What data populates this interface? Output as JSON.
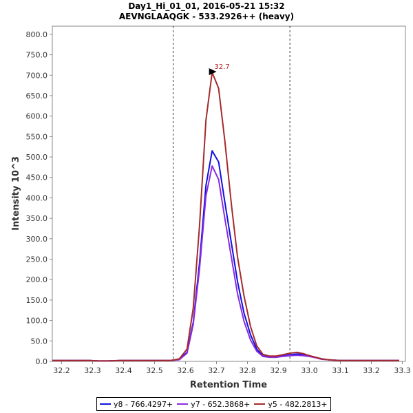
{
  "chart_data": {
    "type": "line",
    "title": "Day1_Hi_01_01, 2016-05-21 15:32",
    "subtitle": "AEVNGLAAQGK - 533.2926++ (heavy)",
    "xlabel": "Retention Time",
    "ylabel": "Intensity 10^3",
    "xlim": [
      32.17,
      33.31
    ],
    "ylim": [
      0,
      820
    ],
    "xticks": [
      "32.2",
      "32.3",
      "32.4",
      "32.5",
      "32.6",
      "32.7",
      "32.8",
      "32.9",
      "33.0",
      "33.1",
      "33.2",
      "33.3"
    ],
    "xtick_values": [
      32.2,
      32.3,
      32.4,
      32.5,
      32.6,
      32.7,
      32.8,
      32.9,
      33.0,
      33.1,
      33.2,
      33.3
    ],
    "yticks": [
      "0.0",
      "50.0",
      "100.0",
      "150.0",
      "200.0",
      "250.0",
      "300.0",
      "350.0",
      "400.0",
      "450.0",
      "500.0",
      "550.0",
      "600.0",
      "650.0",
      "700.0",
      "750.0",
      "800.0"
    ],
    "ytick_values": [
      0,
      50,
      100,
      150,
      200,
      250,
      300,
      350,
      400,
      450,
      500,
      550,
      600,
      650,
      700,
      750,
      800
    ],
    "grid": false,
    "integration_bounds": [
      32.56,
      32.937
    ],
    "peak_annotation": {
      "label": "32.7",
      "x": 32.707,
      "y": 707,
      "color": "#b02020"
    },
    "x": [
      32.17,
      32.21,
      32.25,
      32.29,
      32.32,
      32.35,
      32.39,
      32.43,
      32.47,
      32.51,
      32.55,
      32.58,
      32.605,
      32.625,
      32.645,
      32.666,
      32.686,
      32.707,
      32.727,
      32.748,
      32.768,
      32.789,
      32.81,
      32.83,
      32.85,
      32.871,
      32.892,
      32.912,
      32.937,
      32.96,
      32.98,
      33.0,
      33.02,
      33.04,
      33.06,
      33.08,
      33.1,
      33.13,
      33.17,
      33.21,
      33.25,
      33.29
    ],
    "series": [
      {
        "name": "y8 - 766.4297+",
        "color": "#1010e0",
        "values": [
          2,
          2,
          2,
          2,
          1,
          1,
          2,
          2,
          2,
          2,
          2,
          5,
          22,
          95,
          240,
          430,
          515,
          488,
          390,
          290,
          195,
          118,
          65,
          30,
          13,
          11,
          10,
          13,
          16,
          18,
          17,
          14,
          10,
          6,
          4,
          3,
          2,
          2,
          2,
          2,
          2,
          2
        ]
      },
      {
        "name": "y7 - 652.3868+",
        "color": "#8a2be2",
        "values": [
          2,
          2,
          2,
          2,
          1,
          1,
          2,
          2,
          2,
          2,
          2,
          4,
          20,
          90,
          225,
          405,
          478,
          445,
          350,
          255,
          165,
          98,
          52,
          25,
          12,
          10,
          10,
          12,
          14,
          15,
          14,
          12,
          9,
          5,
          4,
          3,
          2,
          2,
          2,
          2,
          2,
          2
        ]
      },
      {
        "name": "y5 - 482.2813+",
        "color": "#a52a2a",
        "values": [
          2,
          2,
          2,
          2,
          1,
          1,
          2,
          2,
          2,
          2,
          2,
          6,
          30,
          130,
          330,
          590,
          707,
          668,
          540,
          385,
          255,
          160,
          85,
          38,
          17,
          13,
          13,
          16,
          20,
          22,
          19,
          14,
          10,
          6,
          4,
          3,
          2,
          2,
          2,
          2,
          2,
          2
        ]
      }
    ],
    "legend_position": "bottom"
  }
}
